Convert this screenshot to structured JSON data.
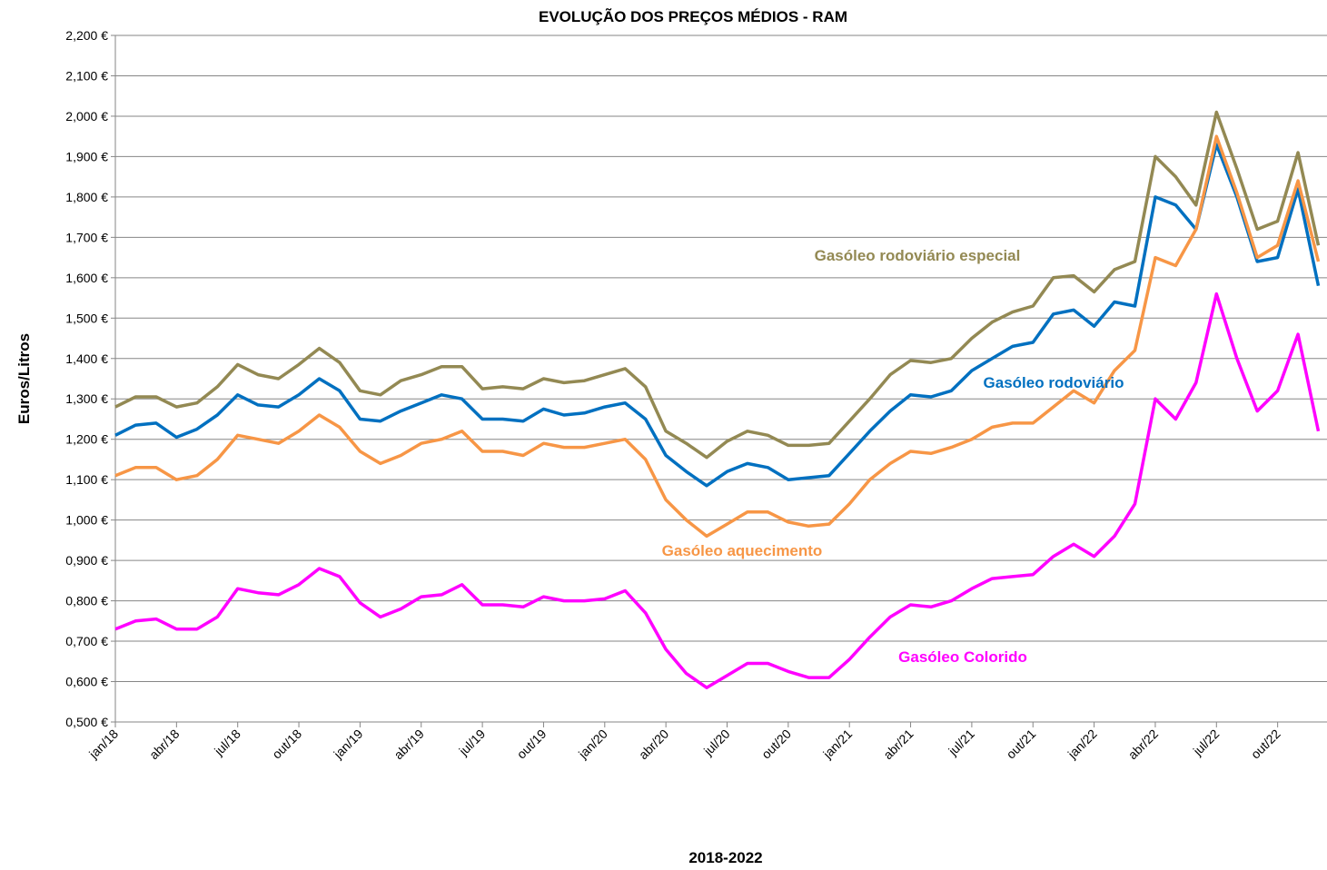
{
  "chart_data": {
    "type": "line",
    "title": "EVOLUÇÃO DOS PREÇOS MÉDIOS - RAM",
    "y_label": "Euros/Litros",
    "x_label": "2018-2022",
    "categories": [
      "jan/18",
      null,
      null,
      "abr/18",
      null,
      null,
      "jul/18",
      null,
      null,
      "out/18",
      null,
      null,
      "jan/19",
      null,
      null,
      "abr/19",
      null,
      null,
      "jul/19",
      null,
      null,
      "out/19",
      null,
      null,
      "jan/20",
      null,
      null,
      "abr/20",
      null,
      null,
      "jul/20",
      null,
      null,
      "out/20",
      null,
      null,
      "jan/21",
      null,
      null,
      "abr/21",
      null,
      null,
      "jul/21",
      null,
      null,
      "out/21",
      null,
      null,
      "jan/22",
      null,
      null,
      "abr/22",
      null,
      null,
      "jul/22",
      null,
      null,
      "out/22",
      null,
      null
    ],
    "ylim": [
      0.5,
      2.2
    ],
    "yticks": [
      {
        "value": 0.5,
        "label": "0,500 €"
      },
      {
        "value": 0.6,
        "label": "0,600 €"
      },
      {
        "value": 0.7,
        "label": "0,700 €"
      },
      {
        "value": 0.8,
        "label": "0,800 €"
      },
      {
        "value": 0.9,
        "label": "0,900 €"
      },
      {
        "value": 1.0,
        "label": "1,000 €"
      },
      {
        "value": 1.1,
        "label": "1,100 €"
      },
      {
        "value": 1.2,
        "label": "1,200 €"
      },
      {
        "value": 1.3,
        "label": "1,300 €"
      },
      {
        "value": 1.4,
        "label": "1,400 €"
      },
      {
        "value": 1.5,
        "label": "1,500 €"
      },
      {
        "value": 1.6,
        "label": "1,600 €"
      },
      {
        "value": 1.7,
        "label": "1,700 €"
      },
      {
        "value": 1.8,
        "label": "1,800 €"
      },
      {
        "value": 1.9,
        "label": "1,900 €"
      },
      {
        "value": 2.0,
        "label": "2,000 €"
      },
      {
        "value": 2.1,
        "label": "2,100 €"
      },
      {
        "value": 2.2,
        "label": "2,200 €"
      }
    ],
    "grid": true,
    "series": [
      {
        "name": "Gasóleo rodoviário especial",
        "color": "#938953",
        "values": [
          1.28,
          1.305,
          1.305,
          1.28,
          1.29,
          1.33,
          1.385,
          1.36,
          1.35,
          1.385,
          1.425,
          1.39,
          1.32,
          1.31,
          1.345,
          1.36,
          1.38,
          1.38,
          1.325,
          1.33,
          1.325,
          1.35,
          1.34,
          1.345,
          1.36,
          1.375,
          1.33,
          1.22,
          1.19,
          1.155,
          1.195,
          1.22,
          1.21,
          1.185,
          1.185,
          1.19,
          1.245,
          1.3,
          1.36,
          1.395,
          1.39,
          1.4,
          1.45,
          1.49,
          1.515,
          1.53,
          1.6,
          1.605,
          1.565,
          1.62,
          1.64,
          1.9,
          1.85,
          1.78,
          2.01,
          1.87,
          1.72,
          1.74,
          1.91,
          1.68
        ]
      },
      {
        "name": "Gasóleo rodoviário",
        "color": "#0070c0",
        "values": [
          1.21,
          1.235,
          1.24,
          1.205,
          1.225,
          1.26,
          1.31,
          1.285,
          1.28,
          1.31,
          1.35,
          1.32,
          1.25,
          1.245,
          1.27,
          1.29,
          1.31,
          1.3,
          1.25,
          1.25,
          1.245,
          1.275,
          1.26,
          1.265,
          1.28,
          1.29,
          1.25,
          1.16,
          1.12,
          1.085,
          1.12,
          1.14,
          1.13,
          1.1,
          1.105,
          1.11,
          1.165,
          1.22,
          1.27,
          1.31,
          1.305,
          1.32,
          1.37,
          1.4,
          1.43,
          1.44,
          1.51,
          1.52,
          1.48,
          1.54,
          1.53,
          1.8,
          1.78,
          1.72,
          1.93,
          1.8,
          1.64,
          1.65,
          1.82,
          1.58
        ]
      },
      {
        "name": "Gasóleo aquecimento",
        "color": "#f79646",
        "values": [
          1.11,
          1.13,
          1.13,
          1.1,
          1.11,
          1.15,
          1.21,
          1.2,
          1.19,
          1.22,
          1.26,
          1.23,
          1.17,
          1.14,
          1.16,
          1.19,
          1.2,
          1.22,
          1.17,
          1.17,
          1.16,
          1.19,
          1.18,
          1.18,
          1.19,
          1.2,
          1.15,
          1.05,
          1.0,
          0.96,
          0.99,
          1.02,
          1.02,
          0.995,
          0.985,
          0.99,
          1.04,
          1.1,
          1.14,
          1.17,
          1.165,
          1.18,
          1.2,
          1.23,
          1.24,
          1.24,
          1.28,
          1.32,
          1.29,
          1.37,
          1.42,
          1.65,
          1.63,
          1.72,
          1.95,
          1.81,
          1.65,
          1.68,
          1.84,
          1.64
        ]
      },
      {
        "name": "Gasóleo Colorido",
        "color": "#ff00ff",
        "values": [
          0.73,
          0.75,
          0.755,
          0.73,
          0.73,
          0.76,
          0.83,
          0.82,
          0.815,
          0.84,
          0.88,
          0.86,
          0.795,
          0.76,
          0.78,
          0.81,
          0.815,
          0.84,
          0.79,
          0.79,
          0.785,
          0.81,
          0.8,
          0.8,
          0.805,
          0.825,
          0.77,
          0.68,
          0.62,
          0.585,
          0.615,
          0.645,
          0.645,
          0.625,
          0.61,
          0.61,
          0.655,
          0.71,
          0.76,
          0.79,
          0.785,
          0.8,
          0.83,
          0.855,
          0.86,
          0.865,
          0.91,
          0.94,
          0.91,
          0.96,
          1.04,
          1.3,
          1.25,
          1.34,
          1.56,
          1.4,
          1.27,
          1.32,
          1.46,
          1.22
        ]
      }
    ]
  }
}
